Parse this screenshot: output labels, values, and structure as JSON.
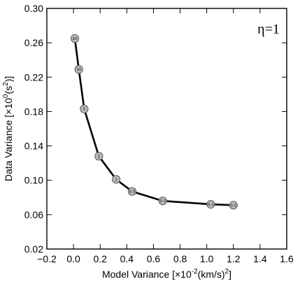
{
  "chart_data": {
    "type": "line",
    "xlabel_main": "Model Variance [×10",
    "xlabel_exp": "-2",
    "xlabel_rest": "(km/s)",
    "xlabel_exp2": "2",
    "ylabel_main": "Data Variance [×10",
    "ylabel_exp": "0",
    "ylabel_rest": "(s",
    "ylabel_exp2": "2",
    "ylabel_close": ")]",
    "annotation": "η=1",
    "xlim": [
      -0.2,
      1.6
    ],
    "ylim": [
      0.02,
      0.3
    ],
    "xticks": [
      -0.2,
      0.0,
      0.2,
      0.4,
      0.6,
      0.8,
      1.0,
      1.2,
      1.4,
      1.6
    ],
    "xtick_labels": [
      "−0.2",
      "0.0",
      "0.2",
      "0.4",
      "0.6",
      "0.8",
      "1.0",
      "1.2",
      "1.4",
      "1.6"
    ],
    "yticks": [
      0.02,
      0.06,
      0.1,
      0.14,
      0.18,
      0.22,
      0.26,
      0.3
    ],
    "ytick_labels": [
      "0.02",
      "0.06",
      "0.10",
      "0.14",
      "0.18",
      "0.22",
      "0.26",
      "0.30"
    ],
    "grid": false,
    "points": [
      {
        "x": 0.01,
        "y": 0.265,
        "label": "20"
      },
      {
        "x": 0.04,
        "y": 0.229,
        "label": "10"
      },
      {
        "x": 0.08,
        "y": 0.183,
        "label": "5"
      },
      {
        "x": 0.19,
        "y": 0.128,
        "label": "2"
      },
      {
        "x": 0.32,
        "y": 0.101,
        "label": "1"
      },
      {
        "x": 0.44,
        "y": 0.087,
        "label": "0.5"
      },
      {
        "x": 0.67,
        "y": 0.076,
        "label": "0.2"
      },
      {
        "x": 1.03,
        "y": 0.072,
        "label": "0.1"
      },
      {
        "x": 1.2,
        "y": 0.071,
        "label": "0.0"
      }
    ],
    "colors": {
      "line": "#000000",
      "marker_fill": "#bbbbbb",
      "marker_stroke": "#555555"
    }
  }
}
